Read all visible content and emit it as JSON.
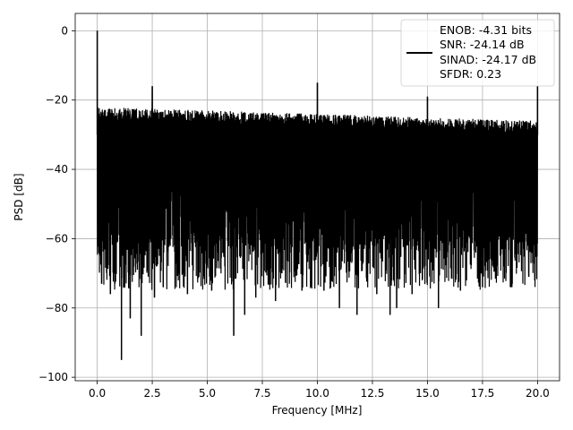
{
  "chart_data": {
    "type": "line",
    "xlabel": "Frequency [MHz]",
    "ylabel": "PSD [dB]",
    "xlim": [
      -1.0,
      21.0
    ],
    "ylim": [
      -101.0,
      5.0
    ],
    "xticks": [
      0.0,
      2.5,
      5.0,
      7.5,
      10.0,
      12.5,
      15.0,
      17.5,
      20.0
    ],
    "xtick_labels": [
      "0.0",
      "2.5",
      "5.0",
      "7.5",
      "10.0",
      "12.5",
      "15.0",
      "17.5",
      "20.0"
    ],
    "yticks": [
      0,
      -20,
      -40,
      -60,
      -80,
      -100
    ],
    "ytick_labels": [
      "0",
      "−20",
      "−40",
      "−60",
      "−80",
      "−100"
    ],
    "grid": true,
    "legend_position": "top-right",
    "legend_lines": [
      "ENOB: -4.31 bits",
      "SNR: -24.14 dB",
      "SINAD: -24.17 dB",
      "SFDR: 0.23"
    ],
    "line_color": "#000000",
    "noise_floor": {
      "x_range": [
        0.0,
        20.0
      ],
      "upper_envelope_db": [
        -22,
        -26
      ],
      "lower_typical_db": -70
    },
    "peaks": [
      {
        "x": 0.0,
        "y": 0
      },
      {
        "x": 2.5,
        "y": -16
      },
      {
        "x": 10.0,
        "y": -15
      },
      {
        "x": 15.0,
        "y": -19
      },
      {
        "x": 20.0,
        "y": -16
      }
    ],
    "dips": [
      {
        "x": 0.2,
        "y": -73
      },
      {
        "x": 0.6,
        "y": -76
      },
      {
        "x": 1.1,
        "y": -95
      },
      {
        "x": 1.5,
        "y": -83
      },
      {
        "x": 2.0,
        "y": -88
      },
      {
        "x": 2.6,
        "y": -77
      },
      {
        "x": 3.0,
        "y": -74
      },
      {
        "x": 4.1,
        "y": -76
      },
      {
        "x": 5.2,
        "y": -75
      },
      {
        "x": 6.2,
        "y": -88
      },
      {
        "x": 6.7,
        "y": -82
      },
      {
        "x": 7.2,
        "y": -77
      },
      {
        "x": 8.1,
        "y": -78
      },
      {
        "x": 9.3,
        "y": -75
      },
      {
        "x": 10.3,
        "y": -75
      },
      {
        "x": 11.0,
        "y": -80
      },
      {
        "x": 11.8,
        "y": -82
      },
      {
        "x": 12.7,
        "y": -76
      },
      {
        "x": 13.3,
        "y": -82
      },
      {
        "x": 13.6,
        "y": -80
      },
      {
        "x": 14.3,
        "y": -76
      },
      {
        "x": 15.5,
        "y": -80
      },
      {
        "x": 16.5,
        "y": -75
      },
      {
        "x": 17.5,
        "y": -74
      },
      {
        "x": 18.8,
        "y": -74
      },
      {
        "x": 19.6,
        "y": -71
      }
    ]
  }
}
